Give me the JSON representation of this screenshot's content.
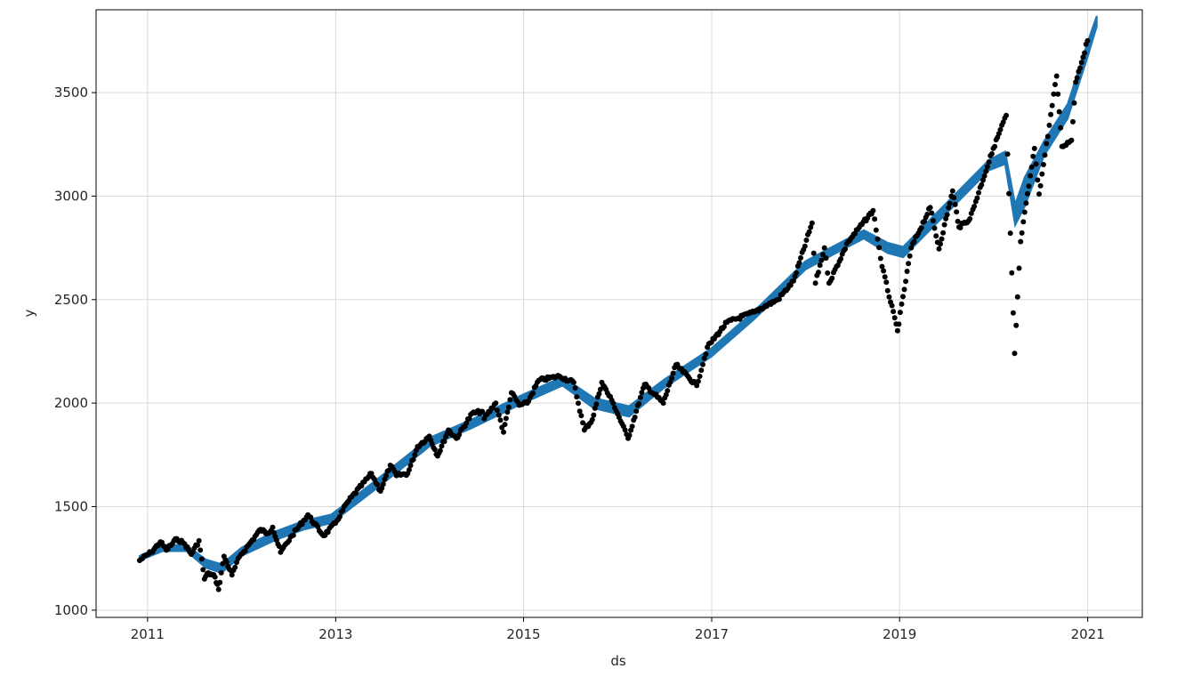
{
  "chart_data": {
    "type": "scatter",
    "title": "",
    "xlabel": "ds",
    "ylabel": "y",
    "xlim": [
      "2010-06-15",
      "2021-08-01"
    ],
    "ylim": [
      965,
      3900
    ],
    "x_tick_labels": [
      "2011",
      "2013",
      "2015",
      "2017",
      "2019",
      "2021"
    ],
    "y_tick_labels": [
      "1000",
      "1500",
      "2000",
      "2500",
      "3000",
      "3500"
    ],
    "grid": true,
    "legend": "none",
    "colors": {
      "points": "#000000",
      "uncertainty_band": "#1f77b4",
      "grid": "#d9d9d9"
    },
    "series": [
      {
        "kind": "observed-points",
        "points": [
          [
            "2010-12-01",
            1240
          ],
          [
            "2011-01-15",
            1280
          ],
          [
            "2011-02-20",
            1330
          ],
          [
            "2011-03-15",
            1290
          ],
          [
            "2011-04-25",
            1345
          ],
          [
            "2011-05-25",
            1320
          ],
          [
            "2011-06-20",
            1270
          ],
          [
            "2011-07-20",
            1335
          ],
          [
            "2011-08-10",
            1150
          ],
          [
            "2011-08-25",
            1180
          ],
          [
            "2011-09-20",
            1160
          ],
          [
            "2011-10-04",
            1100
          ],
          [
            "2011-10-25",
            1260
          ],
          [
            "2011-11-25",
            1170
          ],
          [
            "2011-12-25",
            1260
          ],
          [
            "2012-02-01",
            1320
          ],
          [
            "2012-03-15",
            1390
          ],
          [
            "2012-04-10",
            1370
          ],
          [
            "2012-05-01",
            1400
          ],
          [
            "2012-06-01",
            1280
          ],
          [
            "2012-07-15",
            1360
          ],
          [
            "2012-09-15",
            1460
          ],
          [
            "2012-11-15",
            1360
          ],
          [
            "2012-12-31",
            1420
          ],
          [
            "2013-02-15",
            1520
          ],
          [
            "2013-05-20",
            1660
          ],
          [
            "2013-06-24",
            1575
          ],
          [
            "2013-08-01",
            1700
          ],
          [
            "2013-08-25",
            1650
          ],
          [
            "2013-10-08",
            1660
          ],
          [
            "2013-11-15",
            1790
          ],
          [
            "2013-12-31",
            1840
          ],
          [
            "2014-02-01",
            1745
          ],
          [
            "2014-03-15",
            1870
          ],
          [
            "2014-04-15",
            1830
          ],
          [
            "2014-06-15",
            1950
          ],
          [
            "2014-07-25",
            1960
          ],
          [
            "2014-08-01",
            1925
          ],
          [
            "2014-09-15",
            2000
          ],
          [
            "2014-10-15",
            1860
          ],
          [
            "2014-11-15",
            2050
          ],
          [
            "2014-12-15",
            1990
          ],
          [
            "2015-01-15",
            2000
          ],
          [
            "2015-03-01",
            2110
          ],
          [
            "2015-05-20",
            2130
          ],
          [
            "2015-07-15",
            2100
          ],
          [
            "2015-08-25",
            1870
          ],
          [
            "2015-09-25",
            1920
          ],
          [
            "2015-11-01",
            2100
          ],
          [
            "2015-12-15",
            2000
          ],
          [
            "2016-02-11",
            1830
          ],
          [
            "2016-04-15",
            2090
          ],
          [
            "2016-06-27",
            2000
          ],
          [
            "2016-08-15",
            2185
          ],
          [
            "2016-11-04",
            2085
          ],
          [
            "2016-12-15",
            2270
          ],
          [
            "2017-03-01",
            2390
          ],
          [
            "2017-06-15",
            2440
          ],
          [
            "2017-09-15",
            2500
          ],
          [
            "2017-11-15",
            2590
          ],
          [
            "2018-01-26",
            2870
          ],
          [
            "2018-02-08",
            2580
          ],
          [
            "2018-03-15",
            2750
          ],
          [
            "2018-04-02",
            2580
          ],
          [
            "2018-06-15",
            2780
          ],
          [
            "2018-09-20",
            2930
          ],
          [
            "2018-10-25",
            2660
          ],
          [
            "2018-12-24",
            2350
          ],
          [
            "2019-02-15",
            2750
          ],
          [
            "2019-04-30",
            2945
          ],
          [
            "2019-06-03",
            2745
          ],
          [
            "2019-07-26",
            3025
          ],
          [
            "2019-08-20",
            2850
          ],
          [
            "2019-10-01",
            2890
          ],
          [
            "2019-12-31",
            3230
          ],
          [
            "2020-02-19",
            3390
          ],
          [
            "2020-03-23",
            2240
          ],
          [
            "2020-04-15",
            2780
          ],
          [
            "2020-06-08",
            3230
          ],
          [
            "2020-06-26",
            3010
          ],
          [
            "2020-09-02",
            3580
          ],
          [
            "2020-09-23",
            3240
          ],
          [
            "2020-10-30",
            3270
          ],
          [
            "2020-11-15",
            3550
          ],
          [
            "2020-12-31",
            3750
          ]
        ]
      },
      {
        "kind": "uncertainty-band",
        "points": [
          [
            "2010-12-01",
            1240,
            1262
          ],
          [
            "2011-03-01",
            1285,
            1315
          ],
          [
            "2011-06-01",
            1285,
            1315
          ],
          [
            "2011-08-15",
            1205,
            1245
          ],
          [
            "2011-10-15",
            1180,
            1222
          ],
          [
            "2012-01-01",
            1262,
            1302
          ],
          [
            "2012-05-15",
            1340,
            1382
          ],
          [
            "2012-09-01",
            1390,
            1432
          ],
          [
            "2012-12-15",
            1420,
            1462
          ],
          [
            "2013-06-01",
            1580,
            1622
          ],
          [
            "2013-12-31",
            1790,
            1832
          ],
          [
            "2014-06-15",
            1880,
            1922
          ],
          [
            "2014-12-31",
            2000,
            2042
          ],
          [
            "2015-06-01",
            2085,
            2127
          ],
          [
            "2015-10-01",
            1975,
            2025
          ],
          [
            "2016-02-15",
            1935,
            1985
          ],
          [
            "2016-07-01",
            2075,
            2115
          ],
          [
            "2016-12-31",
            2225,
            2265
          ],
          [
            "2017-06-15",
            2405,
            2445
          ],
          [
            "2017-12-31",
            2645,
            2685
          ],
          [
            "2018-03-15",
            2695,
            2735
          ],
          [
            "2018-08-15",
            2795,
            2835
          ],
          [
            "2018-11-15",
            2725,
            2775
          ],
          [
            "2019-01-15",
            2705,
            2755
          ],
          [
            "2019-06-15",
            2895,
            2945
          ],
          [
            "2019-12-15",
            3125,
            3175
          ],
          [
            "2020-02-15",
            3155,
            3215
          ],
          [
            "2020-03-25",
            2860,
            2960
          ],
          [
            "2020-05-01",
            2950,
            3090
          ],
          [
            "2020-07-15",
            3195,
            3265
          ],
          [
            "2020-10-15",
            3375,
            3445
          ],
          [
            "2021-01-01",
            3675,
            3745
          ],
          [
            "2021-02-05",
            3820,
            3870
          ]
        ]
      }
    ]
  }
}
